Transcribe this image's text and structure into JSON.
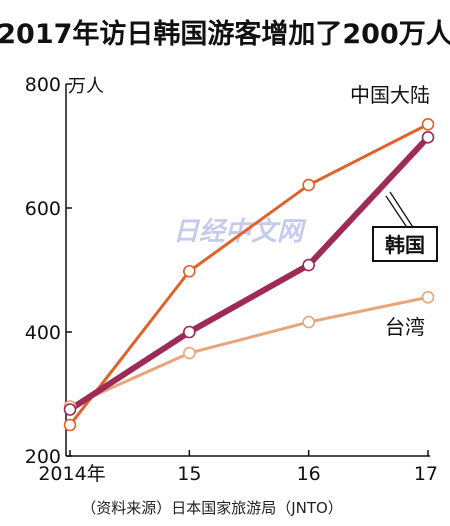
{
  "chart_data": {
    "type": "line",
    "title": "2017年访日韩国游客增加了200万人",
    "unit_label": "万人",
    "x_tick_labels": [
      "2014年",
      "15",
      "16",
      "17"
    ],
    "y_ticks": [
      200,
      400,
      600,
      800
    ],
    "ylim": [
      200,
      800
    ],
    "series": [
      {
        "name": "中国大陆",
        "values": [
          250,
          498,
          637,
          735
        ],
        "color": "#e0612a",
        "width": 3,
        "bold_label": false
      },
      {
        "name": "台湾",
        "values": [
          280,
          366,
          416,
          456
        ],
        "color": "#e8a57a",
        "width": 3,
        "bold_label": false
      },
      {
        "name": "韩国",
        "values": [
          275,
          400,
          508,
          714
        ],
        "color": "#9e2b55",
        "width": 6,
        "bold_label": true
      }
    ],
    "source": "（资料来源）日本国家旅游局（JNTO）",
    "watermark": "日经中文网"
  }
}
